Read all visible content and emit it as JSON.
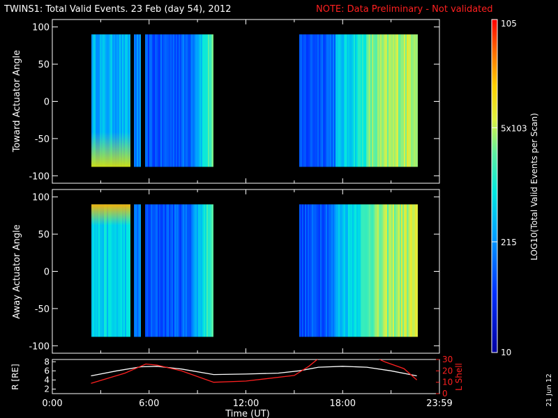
{
  "header": {
    "title": "TWINS1: Total Valid Events. 23 Feb (day  54), 2012",
    "note": "NOTE: Data Preliminary - Not validated",
    "note_color": "#ff2020"
  },
  "side_date": "21 Jun 12",
  "chart_data": [
    {
      "type": "heatmap",
      "ylabel": "Toward Actuator Angle",
      "ylim": [
        -110,
        110
      ],
      "y_ticks": [
        "100",
        "50",
        "0",
        "-50",
        "-100"
      ],
      "xlim": [
        0,
        24
      ],
      "data_extent": {
        "y": [
          -88,
          90
        ]
      },
      "data_segments_hours": [
        [
          2.4,
          4.85
        ],
        [
          5.05,
          5.45
        ],
        [
          5.75,
          10.0
        ],
        [
          15.3,
          22.6
        ]
      ]
    },
    {
      "type": "heatmap",
      "ylabel": "Away Actuator Angle",
      "ylim": [
        -110,
        110
      ],
      "y_ticks": [
        "100",
        "50",
        "0",
        "-50",
        "-100"
      ],
      "xlim": [
        0,
        24
      ],
      "data_extent": {
        "y": [
          -88,
          90
        ]
      },
      "data_segments_hours": [
        [
          2.4,
          4.85
        ],
        [
          5.05,
          5.45
        ],
        [
          5.75,
          10.0
        ],
        [
          15.3,
          22.6
        ]
      ]
    },
    {
      "type": "line",
      "xlabel": "Time (UT)",
      "x_ticks": [
        "0:00",
        "6:00",
        "12:00",
        "18:00",
        "23:59"
      ],
      "xlim": [
        0,
        24
      ],
      "y_left": {
        "label": "R [RE]",
        "ticks": [
          "8",
          "6",
          "4",
          "2"
        ],
        "lim": [
          1,
          8.5
        ]
      },
      "y_right": {
        "label": "L Shell",
        "ticks": [
          "30",
          "20",
          "10",
          "0"
        ],
        "lim": [
          0,
          30
        ],
        "color": "#ff2020"
      },
      "series": [
        {
          "axis": "left",
          "color": "#ffffff",
          "x": [
            2.4,
            4.0,
            5.5,
            6.5,
            8.0,
            10.0,
            12.0,
            14.0,
            15.3,
            16.5,
            18.0,
            19.5,
            21.0,
            22.6
          ],
          "y": [
            4.9,
            6.0,
            6.9,
            7.0,
            6.4,
            5.2,
            5.3,
            5.5,
            6.0,
            6.8,
            7.0,
            6.8,
            6.0,
            4.9
          ]
        },
        {
          "axis": "right",
          "color": "#ff2020",
          "x": [
            2.4,
            4.5,
            5.8,
            6.5,
            8.0,
            10.0,
            12.0,
            15.0,
            15.9,
            16.6,
            20.0,
            20.6,
            21.8,
            22.6
          ],
          "y": [
            9,
            18,
            26,
            25,
            20,
            10,
            11,
            16,
            24,
            32,
            32,
            28,
            22,
            12
          ]
        }
      ]
    }
  ],
  "colorbar": {
    "label": "LOG10(Total Valid Events per Scan)",
    "ticks": [
      "10",
      "215",
      "5x103",
      "105"
    ],
    "tick_values": [
      1,
      2.33,
      3.7,
      5
    ],
    "range": [
      1,
      5
    ]
  }
}
